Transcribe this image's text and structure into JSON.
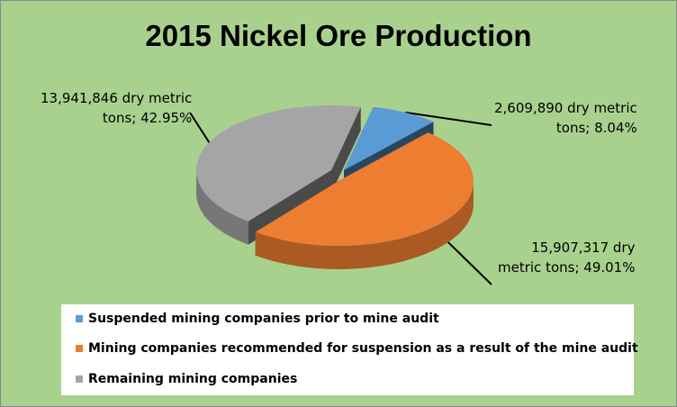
{
  "chart_data": {
    "type": "pie",
    "title": "2015 Nickel Ore Production",
    "slices": [
      {
        "label": "Suspended mining companies prior to mine audit",
        "value": 2609890,
        "percent": 8.04,
        "color": "#5b9bd5",
        "data_label": "2,609,890 dry metric\ntons; 8.04%"
      },
      {
        "label": "Mining companies recommended for suspension as a result of the mine audit",
        "value": 15907317,
        "percent": 49.01,
        "color": "#ed7d31",
        "data_label": "15,907,317 dry\nmetric tons;  49.01%"
      },
      {
        "label": "Remaining mining companies",
        "value": 13941846,
        "percent": 42.95,
        "color": "#a5a5a5",
        "data_label": "13,941,846 dry metric\ntons;  42.95%"
      }
    ],
    "legend_position": "bottom",
    "style": "3d-exploded"
  }
}
